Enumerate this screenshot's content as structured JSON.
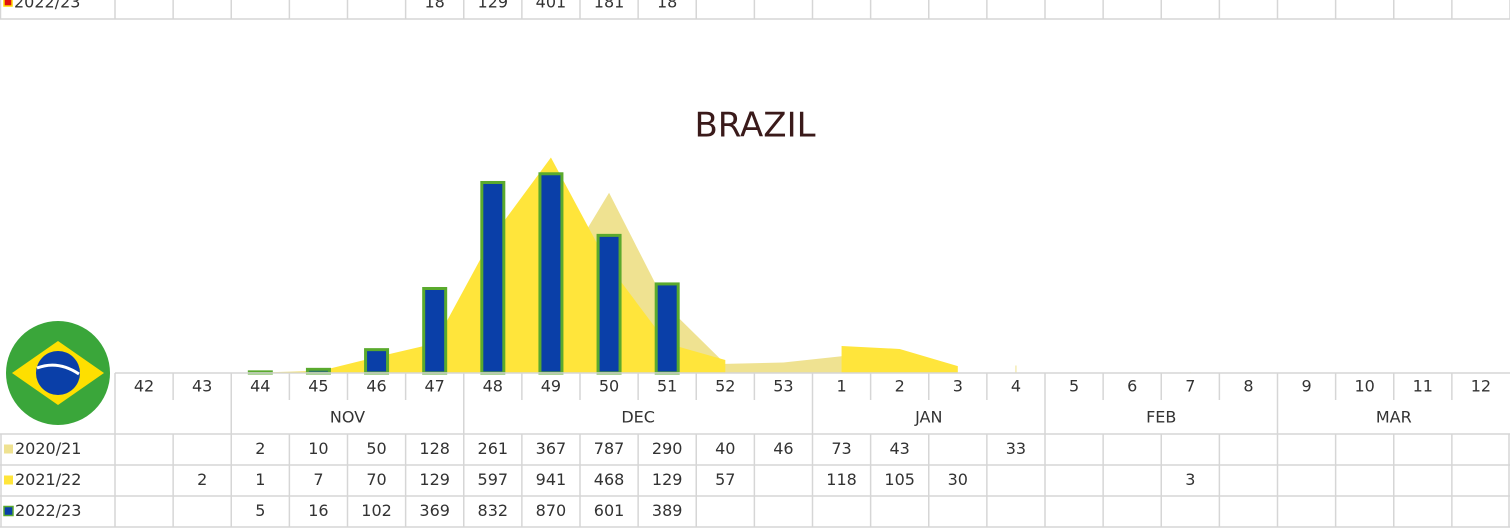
{
  "top_row": {
    "label": "2022/23",
    "color": "#e01010",
    "border": "#ffd800",
    "values": [
      null,
      null,
      null,
      null,
      null,
      18,
      129,
      401,
      181,
      18,
      null,
      null,
      null,
      null,
      null,
      null,
      null,
      null,
      null,
      null,
      null,
      null,
      null,
      null
    ]
  },
  "title": "BRAZIL",
  "weeks": [
    42,
    43,
    44,
    45,
    46,
    47,
    48,
    49,
    50,
    51,
    52,
    53,
    1,
    2,
    3,
    4,
    5,
    6,
    7,
    8,
    9,
    10,
    11,
    12
  ],
  "months": [
    "NOV",
    "DEC",
    "JAN",
    "FEB",
    "MAR"
  ],
  "rows": [
    {
      "label": "2020/21",
      "color": "#efe291",
      "values": [
        null,
        null,
        2,
        10,
        50,
        128,
        261,
        367,
        787,
        290,
        40,
        46,
        73,
        43,
        null,
        33,
        null,
        null,
        null,
        null,
        null,
        null,
        null,
        null
      ]
    },
    {
      "label": "2021/22",
      "color": "#ffe53b",
      "values": [
        null,
        2,
        1,
        7,
        70,
        129,
        597,
        941,
        468,
        129,
        57,
        null,
        118,
        105,
        30,
        null,
        null,
        null,
        3,
        null,
        null,
        null,
        null,
        null
      ]
    },
    {
      "label": "2022/23",
      "color": "#0a3fa8",
      "border": "#5aaa2d",
      "values": [
        null,
        null,
        5,
        16,
        102,
        369,
        832,
        870,
        601,
        389,
        null,
        null,
        null,
        null,
        null,
        null,
        null,
        null,
        null,
        null,
        null,
        null,
        null,
        null
      ]
    }
  ]
}
